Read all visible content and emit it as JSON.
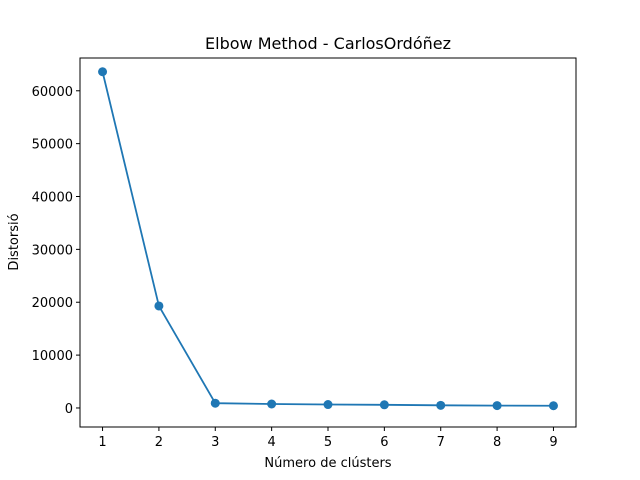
{
  "chart_data": {
    "type": "line",
    "title": "Elbow Method - CarlosOrdóñez",
    "xlabel": "Número de clústers",
    "ylabel": "Distorsió",
    "x": [
      1,
      2,
      3,
      4,
      5,
      6,
      7,
      8,
      9
    ],
    "series": [
      {
        "values": [
          63600,
          19300,
          900,
          750,
          650,
          600,
          500,
          450,
          420
        ],
        "color": "#1f77b4"
      }
    ],
    "xlim": [
      0.6,
      9.4
    ],
    "ylim": [
      -3600,
      66200
    ],
    "xticks": [
      1,
      2,
      3,
      4,
      5,
      6,
      7,
      8,
      9
    ],
    "xtick_labels": [
      "1",
      "2",
      "3",
      "4",
      "5",
      "6",
      "7",
      "8",
      "9"
    ],
    "yticks": [
      0,
      10000,
      20000,
      30000,
      40000,
      50000,
      60000
    ],
    "ytick_labels": [
      "0",
      "10000",
      "20000",
      "30000",
      "40000",
      "50000",
      "60000"
    ],
    "grid": false,
    "marker": "circle"
  }
}
